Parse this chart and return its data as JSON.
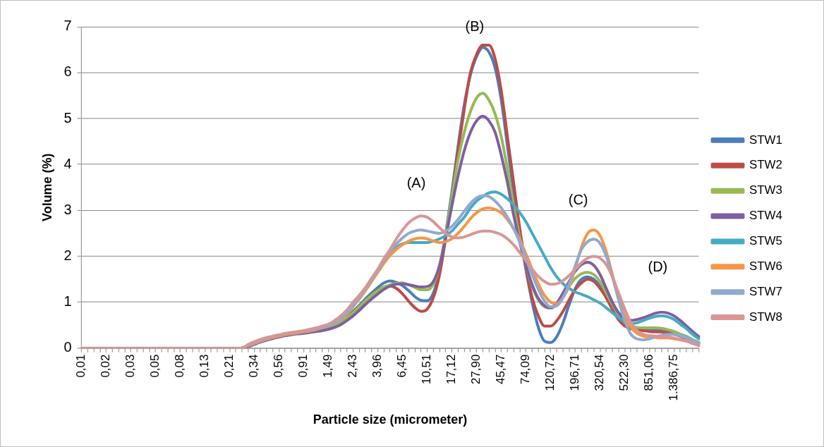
{
  "chart_data": {
    "type": "line",
    "xlabel": "Particle size (micrometer)",
    "ylabel": "Volume (%)",
    "categories": [
      "0,01",
      null,
      null,
      null,
      "0,02",
      null,
      null,
      null,
      "0,03",
      null,
      null,
      null,
      "0,05",
      null,
      null,
      null,
      "0,08",
      null,
      null,
      null,
      "0,13",
      null,
      null,
      null,
      "0,21",
      null,
      null,
      null,
      "0,34",
      null,
      null,
      null,
      "0,56",
      null,
      null,
      null,
      "0,91",
      null,
      null,
      null,
      "1,49",
      null,
      null,
      null,
      "2,43",
      null,
      null,
      null,
      "3,96",
      null,
      null,
      null,
      "6,45",
      null,
      null,
      null,
      "10,51",
      null,
      null,
      null,
      "17,12",
      null,
      null,
      null,
      "27,90",
      null,
      null,
      null,
      "45,47",
      null,
      null,
      null,
      "74,09",
      null,
      null,
      null,
      "120,72",
      null,
      null,
      null,
      "196,71",
      null,
      null,
      null,
      "320,54",
      null,
      null,
      null,
      "522,30",
      null,
      null,
      null,
      "851,06",
      null,
      null,
      null,
      "1.386,75",
      null,
      null,
      null,
      null
    ],
    "series": [
      {
        "name": "STW1",
        "color": "#4a7ebb",
        "values": [
          null,
          null,
          null,
          null,
          null,
          null,
          null,
          null,
          null,
          null,
          null,
          null,
          null,
          null,
          null,
          null,
          null,
          null,
          null,
          null,
          null,
          null,
          null,
          null,
          null,
          null,
          0,
          0.05,
          0.1,
          0.15,
          0.19,
          0.23,
          0.26,
          0.29,
          0.31,
          0.33,
          0.35,
          0.37,
          0.4,
          0.43,
          0.45,
          0.5,
          0.58,
          0.68,
          0.8,
          0.93,
          1.07,
          1.2,
          1.32,
          1.42,
          1.46,
          1.43,
          1.36,
          1.25,
          1.12,
          1.04,
          1.03,
          1.2,
          1.7,
          2.5,
          3.4,
          4.4,
          5.3,
          5.95,
          6.35,
          6.55,
          6.45,
          6.1,
          5.4,
          4.4,
          3.4,
          2.5,
          1.7,
          1.0,
          0.45,
          0.15,
          0.12,
          0.25,
          0.55,
          0.95,
          1.3,
          1.5,
          1.55,
          1.5,
          1.35,
          1.1,
          0.85,
          0.62,
          0.5,
          0.45,
          0.42,
          0.4,
          0.4,
          0.4,
          0.4,
          0.38,
          0.35,
          0.3,
          0.25,
          0.18,
          0.12
        ]
      },
      {
        "name": "STW2",
        "color": "#be4b48",
        "values": [
          null,
          null,
          null,
          null,
          null,
          null,
          null,
          null,
          null,
          null,
          null,
          null,
          null,
          null,
          null,
          null,
          null,
          null,
          null,
          null,
          null,
          null,
          null,
          null,
          null,
          null,
          0,
          0.05,
          0.1,
          0.15,
          0.19,
          0.23,
          0.26,
          0.29,
          0.31,
          0.33,
          0.35,
          0.37,
          0.4,
          0.43,
          0.45,
          0.5,
          0.57,
          0.66,
          0.77,
          0.9,
          1.03,
          1.15,
          1.26,
          1.33,
          1.35,
          1.3,
          1.18,
          1.02,
          0.88,
          0.8,
          0.85,
          1.1,
          1.6,
          2.4,
          3.3,
          4.3,
          5.2,
          6.0,
          6.4,
          6.6,
          6.6,
          6.3,
          5.6,
          4.6,
          3.6,
          2.6,
          1.75,
          1.1,
          0.7,
          0.48,
          0.48,
          0.6,
          0.8,
          1.05,
          1.28,
          1.42,
          1.5,
          1.45,
          1.3,
          1.1,
          0.85,
          0.62,
          0.48,
          0.42,
          0.4,
          0.38,
          0.36,
          0.35,
          0.35,
          0.33,
          0.3,
          0.26,
          0.2,
          0.15,
          0.1
        ]
      },
      {
        "name": "STW3",
        "color": "#98b954",
        "values": [
          null,
          null,
          null,
          null,
          null,
          null,
          null,
          null,
          null,
          null,
          null,
          null,
          null,
          null,
          null,
          null,
          null,
          null,
          null,
          null,
          null,
          null,
          null,
          null,
          null,
          null,
          null,
          null,
          null,
          null,
          null,
          null,
          null,
          null,
          null,
          null,
          null,
          null,
          0.4,
          0.43,
          0.45,
          0.5,
          0.57,
          0.66,
          0.77,
          0.9,
          1.03,
          1.15,
          1.25,
          1.33,
          1.38,
          1.41,
          1.42,
          1.38,
          1.32,
          1.27,
          1.27,
          1.4,
          1.8,
          2.5,
          3.3,
          4.1,
          4.7,
          5.15,
          5.45,
          5.55,
          5.4,
          5.1,
          4.6,
          3.9,
          3.1,
          2.4,
          1.8,
          1.35,
          1.05,
          0.9,
          0.87,
          0.95,
          1.15,
          1.35,
          1.52,
          1.62,
          1.65,
          1.6,
          1.45,
          1.2,
          0.95,
          0.72,
          0.56,
          0.48,
          0.45,
          0.44,
          0.44,
          0.44,
          0.43,
          0.4,
          0.36,
          0.3,
          0.24,
          0.18,
          0.12
        ]
      },
      {
        "name": "STW4",
        "color": "#7d60a0",
        "values": [
          null,
          null,
          null,
          null,
          null,
          null,
          null,
          null,
          null,
          null,
          null,
          null,
          null,
          null,
          null,
          null,
          null,
          null,
          null,
          null,
          null,
          null,
          null,
          null,
          null,
          null,
          0,
          0.03,
          0.08,
          0.13,
          0.17,
          0.21,
          0.24,
          0.27,
          0.29,
          0.31,
          0.32,
          0.34,
          0.36,
          0.38,
          0.41,
          0.45,
          0.51,
          0.6,
          0.7,
          0.82,
          0.95,
          1.07,
          1.18,
          1.28,
          1.35,
          1.39,
          1.4,
          1.38,
          1.35,
          1.33,
          1.34,
          1.45,
          1.8,
          2.4,
          3.1,
          3.75,
          4.3,
          4.7,
          4.95,
          5.05,
          4.95,
          4.7,
          4.2,
          3.6,
          2.9,
          2.3,
          1.8,
          1.38,
          1.08,
          0.92,
          0.88,
          0.98,
          1.2,
          1.45,
          1.68,
          1.82,
          1.87,
          1.8,
          1.6,
          1.3,
          1.0,
          0.77,
          0.64,
          0.6,
          0.62,
          0.66,
          0.71,
          0.76,
          0.78,
          0.76,
          0.7,
          0.6,
          0.48,
          0.36,
          0.25
        ]
      },
      {
        "name": "STW5",
        "color": "#46aac5",
        "values": [
          null,
          null,
          null,
          null,
          null,
          null,
          null,
          null,
          null,
          null,
          null,
          null,
          null,
          null,
          null,
          null,
          null,
          null,
          null,
          null,
          null,
          null,
          null,
          null,
          null,
          null,
          null,
          null,
          null,
          null,
          null,
          null,
          null,
          null,
          null,
          null,
          null,
          null,
          null,
          null,
          null,
          null,
          0.66,
          0.78,
          0.95,
          1.12,
          1.3,
          1.5,
          1.7,
          1.9,
          2.07,
          2.2,
          2.27,
          2.3,
          2.3,
          2.3,
          2.3,
          2.33,
          2.38,
          2.45,
          2.55,
          2.7,
          2.85,
          3.05,
          3.2,
          3.3,
          3.38,
          3.4,
          3.35,
          3.25,
          3.12,
          2.95,
          2.75,
          2.5,
          2.25,
          2.0,
          1.75,
          1.55,
          1.4,
          1.3,
          1.22,
          1.17,
          1.12,
          1.05,
          0.98,
          0.88,
          0.77,
          0.66,
          0.57,
          0.53,
          0.55,
          0.6,
          0.65,
          0.69,
          0.7,
          0.68,
          0.62,
          0.52,
          0.42,
          0.3,
          0.2
        ]
      },
      {
        "name": "STW6",
        "color": "#f79646",
        "values": [
          null,
          null,
          null,
          null,
          null,
          null,
          null,
          null,
          null,
          null,
          null,
          null,
          null,
          null,
          null,
          null,
          null,
          null,
          null,
          null,
          null,
          null,
          null,
          null,
          null,
          null,
          0,
          0.05,
          0.1,
          0.15,
          0.19,
          0.23,
          0.26,
          0.29,
          0.31,
          0.33,
          0.35,
          0.37,
          0.4,
          0.44,
          0.48,
          0.54,
          0.62,
          0.74,
          0.9,
          1.07,
          1.25,
          1.45,
          1.65,
          1.85,
          2.02,
          2.15,
          2.25,
          2.33,
          2.38,
          2.4,
          2.38,
          2.33,
          2.3,
          2.32,
          2.38,
          2.5,
          2.65,
          2.82,
          2.95,
          3.03,
          3.05,
          3.02,
          2.95,
          2.8,
          2.6,
          2.35,
          2.05,
          1.72,
          1.4,
          1.15,
          1.0,
          0.97,
          1.1,
          1.35,
          1.75,
          2.2,
          2.5,
          2.57,
          2.45,
          2.1,
          1.6,
          1.1,
          0.7,
          0.45,
          0.32,
          0.26,
          0.24,
          0.23,
          0.22,
          0.22,
          0.2,
          0.18,
          0.15,
          0.11,
          0.07
        ]
      },
      {
        "name": "STW7",
        "color": "#92a9cf",
        "values": [
          null,
          null,
          null,
          null,
          null,
          null,
          null,
          null,
          null,
          null,
          null,
          null,
          null,
          null,
          null,
          null,
          null,
          null,
          null,
          null,
          null,
          null,
          null,
          null,
          null,
          null,
          0,
          0.06,
          0.12,
          0.17,
          0.21,
          0.25,
          0.28,
          0.31,
          0.33,
          0.35,
          0.37,
          0.39,
          0.42,
          0.45,
          0.49,
          0.55,
          0.64,
          0.76,
          0.92,
          1.1,
          1.28,
          1.48,
          1.68,
          1.9,
          2.1,
          2.27,
          2.4,
          2.5,
          2.55,
          2.57,
          2.55,
          2.52,
          2.5,
          2.55,
          2.65,
          2.8,
          2.98,
          3.15,
          3.27,
          3.32,
          3.3,
          3.2,
          3.05,
          2.85,
          2.6,
          2.3,
          1.95,
          1.6,
          1.28,
          1.02,
          0.9,
          0.92,
          1.1,
          1.4,
          1.8,
          2.15,
          2.32,
          2.37,
          2.28,
          2.0,
          1.55,
          1.05,
          0.6,
          0.3,
          0.2,
          0.18,
          0.2,
          0.25,
          0.28,
          0.3,
          0.3,
          0.27,
          0.22,
          0.16,
          0.1
        ]
      },
      {
        "name": "STW8",
        "color": "#d99694",
        "values": [
          0,
          0,
          0,
          0,
          0,
          0,
          0,
          0,
          0,
          0,
          0,
          0,
          0,
          0,
          0,
          0,
          0,
          0,
          0,
          0,
          0,
          0,
          0,
          0,
          0,
          0,
          0,
          0.08,
          0.14,
          0.19,
          0.23,
          0.26,
          0.29,
          0.32,
          0.34,
          0.36,
          0.38,
          0.41,
          0.44,
          0.48,
          0.52,
          0.6,
          0.7,
          0.83,
          1.0,
          1.15,
          1.32,
          1.52,
          1.72,
          1.95,
          2.15,
          2.38,
          2.57,
          2.73,
          2.83,
          2.88,
          2.85,
          2.75,
          2.62,
          2.5,
          2.42,
          2.4,
          2.42,
          2.47,
          2.52,
          2.55,
          2.55,
          2.52,
          2.47,
          2.38,
          2.25,
          2.08,
          1.9,
          1.72,
          1.56,
          1.45,
          1.39,
          1.4,
          1.47,
          1.58,
          1.72,
          1.86,
          1.96,
          2.0,
          1.96,
          1.82,
          1.55,
          1.2,
          0.85,
          0.55,
          0.38,
          0.3,
          0.27,
          0.26,
          0.25,
          0.24,
          0.22,
          0.19,
          0.15,
          0.1,
          0.05
        ]
      }
    ],
    "ylim": [
      0,
      7
    ],
    "yticks": [
      0,
      1,
      2,
      3,
      4,
      5,
      6,
      7
    ],
    "grid": "y",
    "legend": "right",
    "annotations": [
      "(A)",
      "(B)",
      "(C)",
      "(D)"
    ]
  }
}
